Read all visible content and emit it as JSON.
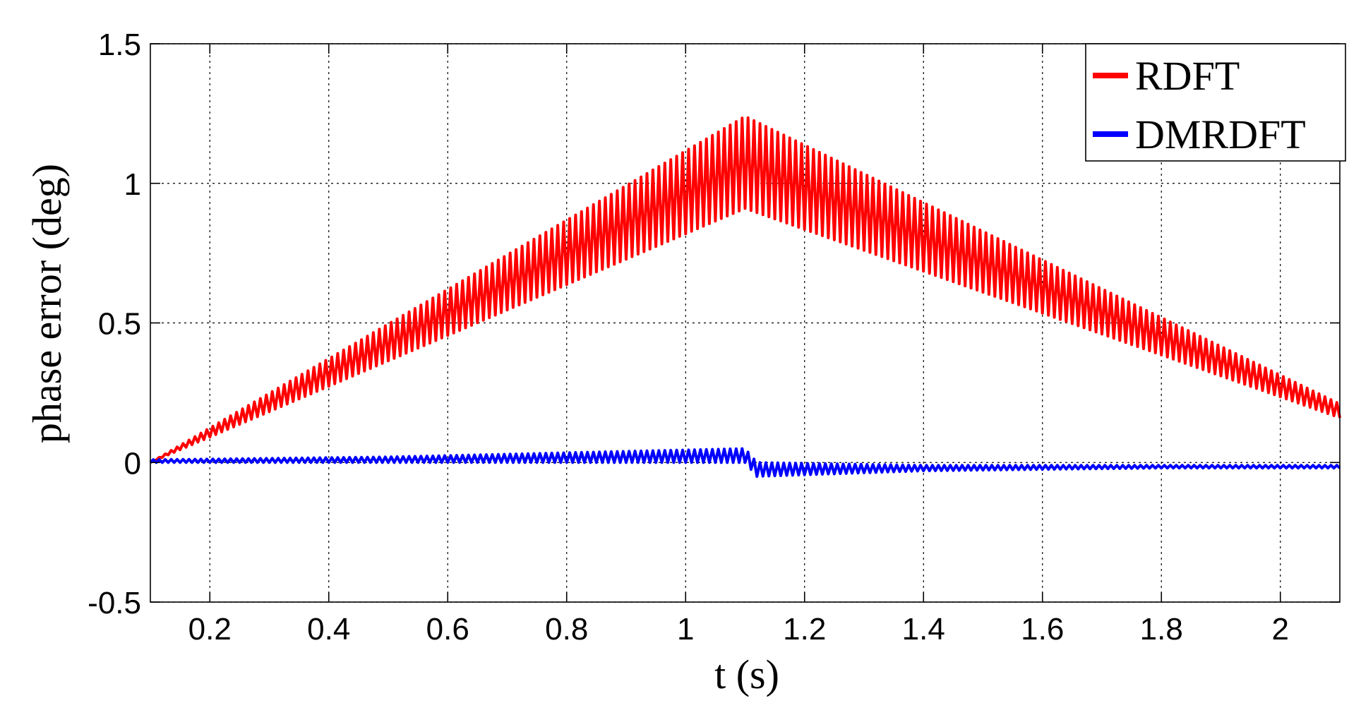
{
  "chart_data": {
    "type": "line",
    "title": "",
    "xlabel": "t (s)",
    "ylabel": "phase error (deg)",
    "xlim": [
      0.1,
      2.1
    ],
    "ylim": [
      -0.5,
      1.5
    ],
    "xticks": [
      0.2,
      0.4,
      0.6,
      0.8,
      1,
      1.2,
      1.4,
      1.6,
      1.8,
      2
    ],
    "yticks": [
      -0.5,
      0,
      0.5,
      1,
      1.5
    ],
    "xtick_labels": [
      "0.2",
      "0.4",
      "0.6",
      "0.8",
      "1",
      "1.2",
      "1.4",
      "1.6",
      "1.8",
      "2"
    ],
    "ytick_labels": [
      "-0.5",
      "0",
      "0.5",
      "1",
      "1.5"
    ],
    "grid": true,
    "legend_position": "top-right",
    "series": [
      {
        "name": "RDFT",
        "color": "#ff0000",
        "x": [
          0.1,
          1.1,
          2.1
        ],
        "upper": [
          0.0,
          1.24,
          0.21
        ],
        "lower": [
          0.0,
          0.91,
          0.16
        ],
        "oscillation_period_s": 0.01
      },
      {
        "name": "DMRDFT",
        "color": "#0000ff",
        "x": [
          0.1,
          0.5,
          0.9,
          1.1,
          1.12,
          1.4,
          1.8,
          2.1
        ],
        "upper": [
          0.01,
          0.02,
          0.04,
          0.05,
          0.0,
          -0.01,
          -0.01,
          -0.01
        ],
        "lower": [
          0.0,
          0.0,
          0.0,
          0.0,
          -0.05,
          -0.03,
          -0.02,
          -0.02
        ],
        "oscillation_period_s": 0.01
      }
    ]
  }
}
